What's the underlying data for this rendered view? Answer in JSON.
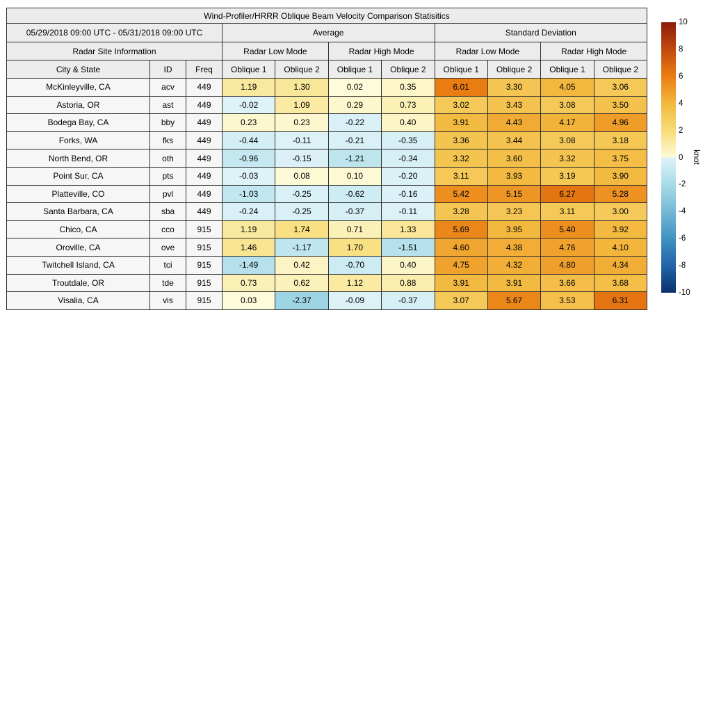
{
  "chart_data": {
    "type": "table",
    "title": "Wind-Profiler/HRRR Oblique Beam Velocity Comparison Statisitics",
    "period": "05/29/2018 09:00 UTC - 05/31/2018 09:00 UTC",
    "site_info_header": "Radar Site Information",
    "group_headers": [
      "Average",
      "Standard Deviation"
    ],
    "mode_headers": [
      "Radar Low Mode",
      "Radar High Mode",
      "Radar Low Mode",
      "Radar High Mode"
    ],
    "site_columns": [
      "City & State",
      "ID",
      "Freq"
    ],
    "value_columns": [
      "Oblique 1",
      "Oblique 2",
      "Oblique 1",
      "Oblique 2",
      "Oblique 1",
      "Oblique 2",
      "Oblique 1",
      "Oblique 2"
    ],
    "rows": [
      {
        "city": "McKinleyville, CA",
        "id": "acv",
        "freq": "449",
        "values": [
          1.19,
          1.3,
          0.02,
          0.35,
          6.01,
          3.3,
          4.05,
          3.06
        ]
      },
      {
        "city": "Astoria, OR",
        "id": "ast",
        "freq": "449",
        "values": [
          -0.02,
          1.09,
          0.29,
          0.73,
          3.02,
          3.43,
          3.08,
          3.5
        ]
      },
      {
        "city": "Bodega Bay, CA",
        "id": "bby",
        "freq": "449",
        "values": [
          0.23,
          0.23,
          -0.22,
          0.4,
          3.91,
          4.43,
          4.17,
          4.96
        ]
      },
      {
        "city": "Forks, WA",
        "id": "fks",
        "freq": "449",
        "values": [
          -0.44,
          -0.11,
          -0.21,
          -0.35,
          3.36,
          3.44,
          3.08,
          3.18
        ]
      },
      {
        "city": "North Bend, OR",
        "id": "oth",
        "freq": "449",
        "values": [
          -0.96,
          -0.15,
          -1.21,
          -0.34,
          3.32,
          3.6,
          3.32,
          3.75
        ]
      },
      {
        "city": "Point Sur, CA",
        "id": "pts",
        "freq": "449",
        "values": [
          -0.03,
          0.08,
          0.1,
          -0.2,
          3.11,
          3.93,
          3.19,
          3.9
        ]
      },
      {
        "city": "Platteville, CO",
        "id": "pvl",
        "freq": "449",
        "values": [
          -1.03,
          -0.25,
          -0.62,
          -0.16,
          5.42,
          5.15,
          6.27,
          5.28
        ]
      },
      {
        "city": "Santa Barbara, CA",
        "id": "sba",
        "freq": "449",
        "values": [
          -0.24,
          -0.25,
          -0.37,
          -0.11,
          3.28,
          3.23,
          3.11,
          3.0
        ]
      },
      {
        "city": "Chico, CA",
        "id": "cco",
        "freq": "915",
        "values": [
          1.19,
          1.74,
          0.71,
          1.33,
          5.69,
          3.95,
          5.4,
          3.92
        ]
      },
      {
        "city": "Oroville, CA",
        "id": "ove",
        "freq": "915",
        "values": [
          1.46,
          -1.17,
          1.7,
          -1.51,
          4.6,
          4.38,
          4.76,
          4.1
        ]
      },
      {
        "city": "Twitchell Island, CA",
        "id": "tci",
        "freq": "915",
        "values": [
          -1.49,
          0.42,
          -0.7,
          0.4,
          4.75,
          4.32,
          4.8,
          4.34
        ]
      },
      {
        "city": "Troutdale, OR",
        "id": "tde",
        "freq": "915",
        "values": [
          0.73,
          0.62,
          1.12,
          0.88,
          3.91,
          3.91,
          3.66,
          3.68
        ]
      },
      {
        "city": "Visalia, CA",
        "id": "vis",
        "freq": "915",
        "values": [
          0.03,
          -2.37,
          -0.09,
          -0.37,
          3.07,
          5.67,
          3.53,
          6.31
        ]
      }
    ],
    "colorbar": {
      "label": "knot",
      "min": -10,
      "max": 10,
      "ticks": [
        10,
        8,
        6,
        4,
        2,
        0,
        -2,
        -4,
        -6,
        -8,
        -10
      ],
      "negative_stops": [
        [
          -10,
          "#0B316C"
        ],
        [
          -8,
          "#2264A8"
        ],
        [
          -6,
          "#4191C2"
        ],
        [
          -4,
          "#74B9D6"
        ],
        [
          -2,
          "#A8DBE8"
        ],
        [
          0,
          "#DFF3F8"
        ]
      ],
      "positive_stops": [
        [
          0,
          "#FDFBDA"
        ],
        [
          2,
          "#F7DC76"
        ],
        [
          4,
          "#F3B83E"
        ],
        [
          6,
          "#EA7D12"
        ],
        [
          8,
          "#C14A10"
        ],
        [
          10,
          "#8E1A0B"
        ]
      ]
    }
  }
}
